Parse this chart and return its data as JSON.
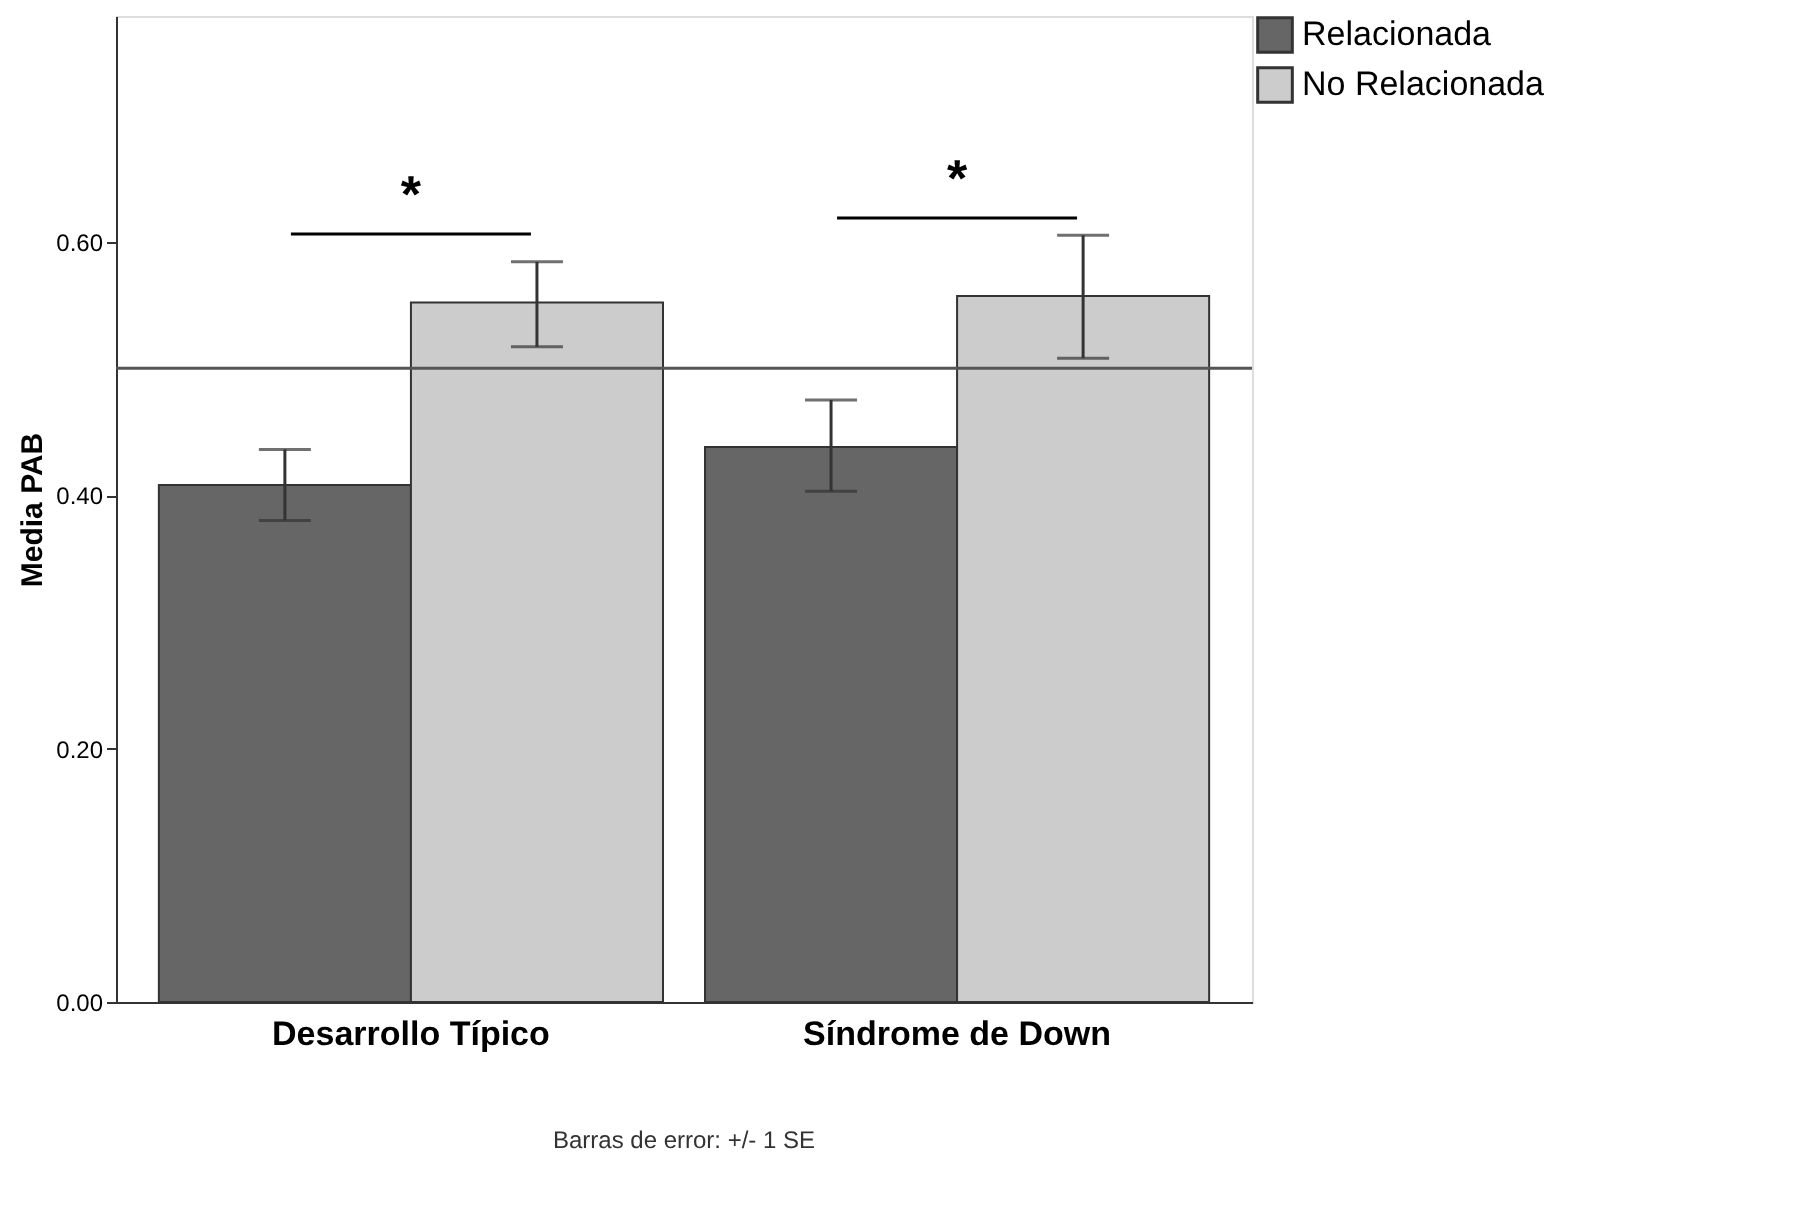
{
  "chart_data": {
    "type": "bar",
    "ylabel": "Media PAB",
    "categories": [
      "Desarrollo Típico",
      "Síndrome de Down"
    ],
    "series": [
      {
        "name": "Relacionada",
        "color": "#666666",
        "values": [
          0.408,
          0.438
        ],
        "errors": [
          [
            0.38,
            0.436
          ],
          [
            0.403,
            0.475
          ]
        ]
      },
      {
        "name": "No Relacionada",
        "color": "#cccccc",
        "values": [
          0.552,
          0.557
        ],
        "errors": [
          [
            0.517,
            0.584
          ],
          [
            0.508,
            0.605
          ]
        ]
      }
    ],
    "ylim": [
      0,
      0.778
    ],
    "yticks": [
      {
        "value": 0,
        "label": "0.00"
      },
      {
        "value": 0.2,
        "label": "0.20"
      },
      {
        "value": 0.4,
        "label": "0.40"
      },
      {
        "value": 0.6,
        "label": "0.60"
      }
    ],
    "ref_lines": [
      {
        "axis": "y",
        "value": 0.5,
        "color": "#555555"
      }
    ],
    "annotations": [
      "*",
      "*",
      "Barras de error: +/- 1 SE"
    ],
    "grid": false,
    "legend": "top right"
  }
}
